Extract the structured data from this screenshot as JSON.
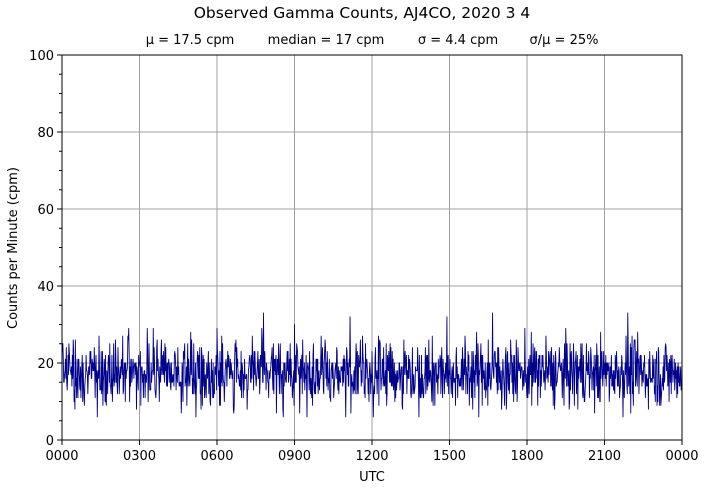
{
  "chart_data": {
    "type": "line",
    "title": "Observed Gamma Counts, AJ4CO, 2020 3 4",
    "stats": [
      "μ = 17.5 cpm",
      "median = 17 cpm",
      "σ = 4.4 cpm",
      "σ/μ = 25%"
    ],
    "xlabel": "UTC",
    "ylabel": "Counts per Minute (cpm)",
    "x_ticks": [
      "0000",
      "0300",
      "0600",
      "0900",
      "1200",
      "1500",
      "1800",
      "2100",
      "0000"
    ],
    "y_ticks": [
      "0",
      "20",
      "40",
      "60",
      "80",
      "100"
    ],
    "xlim_minutes": [
      0,
      1440
    ],
    "ylim": [
      0,
      100
    ],
    "grid": true,
    "line_color": "#00008b",
    "grid_color": "#a0a0a0",
    "series": [
      {
        "sampling": "one count per minute, 1440 samples; minute-by-minute values are not legible, summarized by the printed statistics",
        "mean": 17.5,
        "median": 17,
        "std": 4.4,
        "min": 6,
        "max": 33,
        "peaks": [
          {
            "minute": 468,
            "value": 33
          },
          {
            "minute": 1000,
            "value": 33
          },
          {
            "minute": 1314,
            "value": 33
          }
        ]
      }
    ]
  }
}
